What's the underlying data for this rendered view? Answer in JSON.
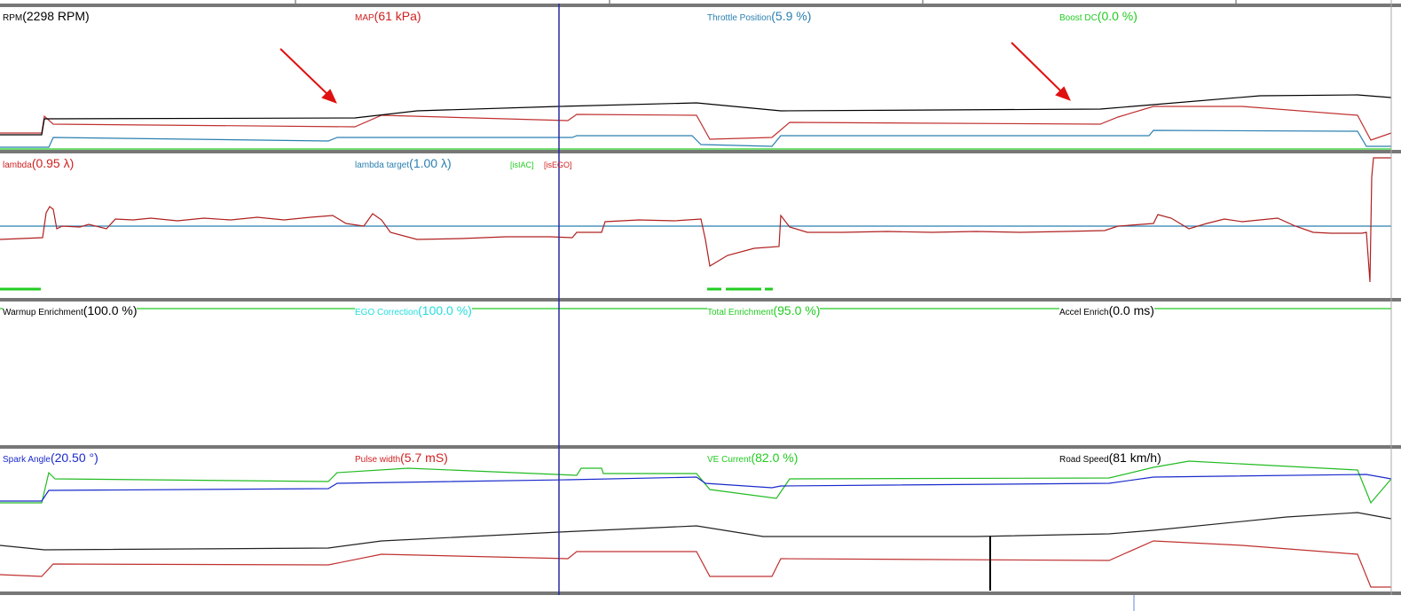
{
  "panels": [
    {
      "fields": [
        {
          "name": "RPM",
          "value": "(2298 RPM)",
          "color": "#000000"
        },
        {
          "name": "MAP",
          "value": "(61 kPa)",
          "color": "#d02020"
        },
        {
          "name": "Throttle Position",
          "value": "(5.9 %)",
          "color": "#2a7fb0"
        },
        {
          "name": "Boost DC",
          "value": "(0.0 %)",
          "color": "#22cc22"
        }
      ]
    },
    {
      "fields": [
        {
          "name": "lambda",
          "value": "(0.95 λ)",
          "color": "#d02020"
        },
        {
          "name": "lambda target",
          "value": "(1.00 λ)",
          "color": "#2a7fb0"
        }
      ],
      "flags": [
        {
          "text": "[isIAC]",
          "color": "#22cc22"
        },
        {
          "text": "[isEGO]",
          "color": "#d02020"
        }
      ]
    },
    {
      "fields": [
        {
          "name": "Warmup Enrichment",
          "value": "(100.0 %)",
          "color": "#000000"
        },
        {
          "name": "EGO Correction",
          "value": "(100.0 %)",
          "color": "#22dddd"
        },
        {
          "name": "Total Enrichment",
          "value": "(95.0 %)",
          "color": "#22cc22"
        },
        {
          "name": "Accel Enrich",
          "value": "(0.0 ms)",
          "color": "#000000"
        }
      ]
    },
    {
      "fields": [
        {
          "name": "Spark Angle",
          "value": "(20.50 °)",
          "color": "#1a2acc"
        },
        {
          "name": "Pulse width",
          "value": "(5.7 mS)",
          "color": "#d02020"
        },
        {
          "name": "VE Current",
          "value": "(82.0 %)",
          "color": "#22cc22"
        },
        {
          "name": "Road Speed",
          "value": "(81 km/h)",
          "color": "#000000"
        }
      ]
    }
  ]
}
